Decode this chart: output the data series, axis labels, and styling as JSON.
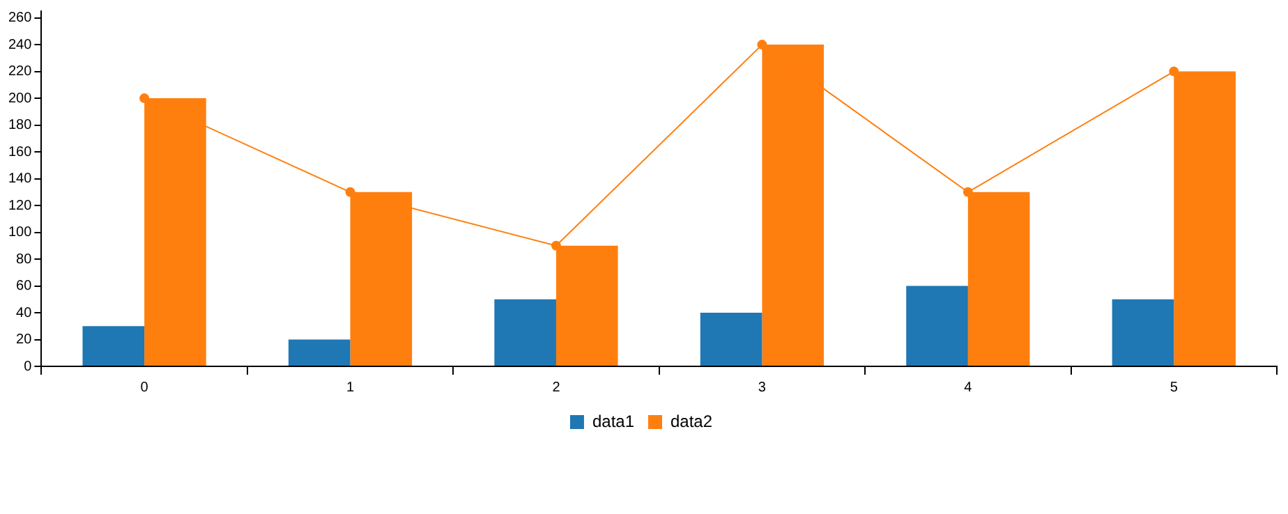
{
  "chart_data": {
    "type": "bar",
    "categories": [
      "0",
      "1",
      "2",
      "3",
      "4",
      "5"
    ],
    "series": [
      {
        "name": "data1",
        "color": "#1f77b4",
        "values": [
          30,
          20,
          50,
          40,
          60,
          50
        ]
      },
      {
        "name": "data2",
        "color": "#ff7f0e",
        "values": [
          200,
          130,
          90,
          240,
          130,
          220
        ]
      },
      {
        "type": "line",
        "color": "#ff7f0e",
        "values": [
          200,
          130,
          90,
          240,
          130,
          220
        ],
        "marker": "circle"
      }
    ],
    "ylim": [
      0,
      265
    ],
    "yticks": [
      0,
      20,
      40,
      60,
      80,
      100,
      120,
      140,
      160,
      180,
      200,
      220,
      240,
      260
    ],
    "legend": "bottom"
  }
}
